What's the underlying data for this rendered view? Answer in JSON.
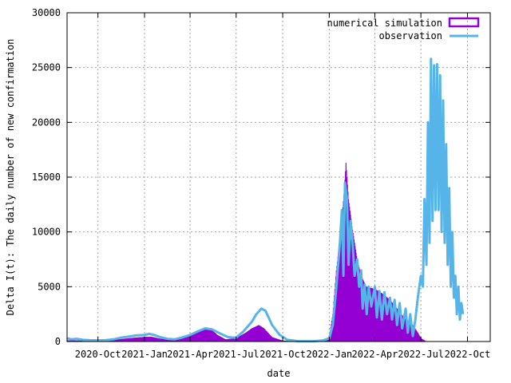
{
  "chart_data": {
    "type": "bar",
    "title": "",
    "xlabel": "date",
    "ylabel": "Delta I(t): The daily number of new confirmation",
    "x_range": [
      "2020-08-01",
      "2022-11-15"
    ],
    "ylim": [
      0,
      30000
    ],
    "y_ticks": [
      0,
      5000,
      10000,
      15000,
      20000,
      25000,
      30000
    ],
    "x_ticks": [
      {
        "date": "2020-10-01",
        "label": "2020-Oct"
      },
      {
        "date": "2021-01-01",
        "label": "2021-Jan"
      },
      {
        "date": "2021-04-01",
        "label": "2021-Apr"
      },
      {
        "date": "2021-07-01",
        "label": "2021-Jul"
      },
      {
        "date": "2021-10-01",
        "label": "2021-Oct"
      },
      {
        "date": "2022-01-01",
        "label": "2022-Jan"
      },
      {
        "date": "2022-04-01",
        "label": "2022-Apr"
      },
      {
        "date": "2022-07-01",
        "label": "2022-Jul"
      },
      {
        "date": "2022-10-01",
        "label": "2022-Oct"
      }
    ],
    "grid": true,
    "legend_position": "top-right",
    "series": [
      {
        "name": "numerical simulation",
        "style": "impulses",
        "color": "#9400d3",
        "points": [
          [
            "2020-08-01",
            100
          ],
          [
            "2020-09-01",
            80
          ],
          [
            "2020-10-01",
            80
          ],
          [
            "2020-11-01",
            150
          ],
          [
            "2020-12-01",
            300
          ],
          [
            "2020-12-15",
            360
          ],
          [
            "2021-01-01",
            420
          ],
          [
            "2021-01-15",
            430
          ],
          [
            "2021-02-01",
            260
          ],
          [
            "2021-03-01",
            150
          ],
          [
            "2021-03-15",
            350
          ],
          [
            "2021-04-01",
            700
          ],
          [
            "2021-04-20",
            1000
          ],
          [
            "2021-05-01",
            1300
          ],
          [
            "2021-05-10",
            1200
          ],
          [
            "2021-05-25",
            600
          ],
          [
            "2021-06-10",
            200
          ],
          [
            "2021-07-01",
            300
          ],
          [
            "2021-07-20",
            800
          ],
          [
            "2021-08-01",
            1200
          ],
          [
            "2021-08-15",
            1500
          ],
          [
            "2021-08-25",
            1200
          ],
          [
            "2021-09-10",
            400
          ],
          [
            "2021-10-01",
            80
          ],
          [
            "2021-11-01",
            30
          ],
          [
            "2021-12-01",
            30
          ],
          [
            "2021-12-20",
            80
          ],
          [
            "2022-01-01",
            400
          ],
          [
            "2022-01-08",
            2500
          ],
          [
            "2022-01-15",
            6500
          ],
          [
            "2022-01-25",
            10500
          ],
          [
            "2022-01-31",
            14000
          ],
          [
            "2022-02-03",
            16300
          ],
          [
            "2022-02-08",
            13000
          ],
          [
            "2022-02-15",
            10500
          ],
          [
            "2022-02-25",
            7500
          ],
          [
            "2022-03-05",
            6000
          ],
          [
            "2022-03-15",
            5000
          ],
          [
            "2022-04-01",
            4800
          ],
          [
            "2022-04-15",
            4400
          ],
          [
            "2022-05-01",
            3800
          ],
          [
            "2022-05-15",
            3000
          ],
          [
            "2022-06-01",
            2000
          ],
          [
            "2022-06-15",
            1500
          ],
          [
            "2022-06-25",
            800
          ],
          [
            "2022-07-01",
            300
          ],
          [
            "2022-07-10",
            50
          ]
        ]
      },
      {
        "name": "observation",
        "style": "lines",
        "color": "#56b4e9",
        "points": [
          [
            "2020-08-01",
            300
          ],
          [
            "2020-08-10",
            200
          ],
          [
            "2020-08-20",
            250
          ],
          [
            "2020-09-01",
            150
          ],
          [
            "2020-09-15",
            120
          ],
          [
            "2020-10-01",
            100
          ],
          [
            "2020-10-15",
            120
          ],
          [
            "2020-11-01",
            200
          ],
          [
            "2020-11-15",
            350
          ],
          [
            "2020-12-01",
            450
          ],
          [
            "2020-12-15",
            550
          ],
          [
            "2021-01-01",
            600
          ],
          [
            "2021-01-10",
            700
          ],
          [
            "2021-01-20",
            600
          ],
          [
            "2021-02-01",
            400
          ],
          [
            "2021-02-15",
            250
          ],
          [
            "2021-03-01",
            200
          ],
          [
            "2021-03-15",
            350
          ],
          [
            "2021-04-01",
            600
          ],
          [
            "2021-04-15",
            900
          ],
          [
            "2021-05-01",
            1200
          ],
          [
            "2021-05-15",
            1100
          ],
          [
            "2021-06-01",
            700
          ],
          [
            "2021-06-15",
            400
          ],
          [
            "2021-07-01",
            350
          ],
          [
            "2021-07-15",
            900
          ],
          [
            "2021-08-01",
            1800
          ],
          [
            "2021-08-10",
            2500
          ],
          [
            "2021-08-20",
            3000
          ],
          [
            "2021-08-28",
            2800
          ],
          [
            "2021-09-10",
            1500
          ],
          [
            "2021-09-25",
            600
          ],
          [
            "2021-10-10",
            150
          ],
          [
            "2021-11-01",
            30
          ],
          [
            "2021-12-01",
            30
          ],
          [
            "2021-12-20",
            100
          ],
          [
            "2022-01-01",
            300
          ],
          [
            "2022-01-08",
            1500
          ],
          [
            "2022-01-15",
            5000
          ],
          [
            "2022-01-22",
            9000
          ],
          [
            "2022-01-26",
            12000
          ],
          [
            "2022-01-29",
            6000
          ],
          [
            "2022-02-01",
            14500
          ],
          [
            "2022-02-05",
            13000
          ],
          [
            "2022-02-08",
            7000
          ],
          [
            "2022-02-12",
            11000
          ],
          [
            "2022-02-16",
            9000
          ],
          [
            "2022-02-20",
            6000
          ],
          [
            "2022-02-25",
            7500
          ],
          [
            "2022-03-01",
            5000
          ],
          [
            "2022-03-05",
            6500
          ],
          [
            "2022-03-08",
            3000
          ],
          [
            "2022-03-12",
            5200
          ],
          [
            "2022-03-16",
            2500
          ],
          [
            "2022-03-20",
            5000
          ],
          [
            "2022-03-25",
            3200
          ],
          [
            "2022-04-01",
            5000
          ],
          [
            "2022-04-05",
            2200
          ],
          [
            "2022-04-10",
            4600
          ],
          [
            "2022-04-15",
            2000
          ],
          [
            "2022-04-20",
            4500
          ],
          [
            "2022-04-25",
            2500
          ],
          [
            "2022-05-01",
            4000
          ],
          [
            "2022-05-05",
            2000
          ],
          [
            "2022-05-10",
            3800
          ],
          [
            "2022-05-15",
            1500
          ],
          [
            "2022-05-20",
            3500
          ],
          [
            "2022-05-25",
            1200
          ],
          [
            "2022-06-01",
            3000
          ],
          [
            "2022-06-05",
            800
          ],
          [
            "2022-06-10",
            2500
          ],
          [
            "2022-06-15",
            500
          ],
          [
            "2022-06-20",
            2000
          ],
          [
            "2022-06-25",
            4000
          ],
          [
            "2022-07-01",
            6000
          ],
          [
            "2022-07-05",
            5000
          ],
          [
            "2022-07-08",
            13000
          ],
          [
            "2022-07-12",
            7000
          ],
          [
            "2022-07-15",
            20000
          ],
          [
            "2022-07-18",
            9000
          ],
          [
            "2022-07-21",
            25800
          ],
          [
            "2022-07-24",
            11000
          ],
          [
            "2022-07-27",
            25200
          ],
          [
            "2022-07-30",
            12000
          ],
          [
            "2022-08-02",
            25300
          ],
          [
            "2022-08-05",
            12000
          ],
          [
            "2022-08-08",
            24300
          ],
          [
            "2022-08-11",
            10000
          ],
          [
            "2022-08-14",
            22000
          ],
          [
            "2022-08-17",
            9000
          ],
          [
            "2022-08-20",
            18000
          ],
          [
            "2022-08-23",
            7000
          ],
          [
            "2022-08-26",
            14000
          ],
          [
            "2022-08-29",
            5000
          ],
          [
            "2022-09-01",
            10000
          ],
          [
            "2022-09-04",
            4000
          ],
          [
            "2022-09-07",
            6000
          ],
          [
            "2022-09-10",
            2500
          ],
          [
            "2022-09-13",
            5000
          ],
          [
            "2022-09-16",
            2000
          ],
          [
            "2022-09-19",
            3500
          ],
          [
            "2022-09-22",
            2500
          ]
        ]
      }
    ]
  }
}
